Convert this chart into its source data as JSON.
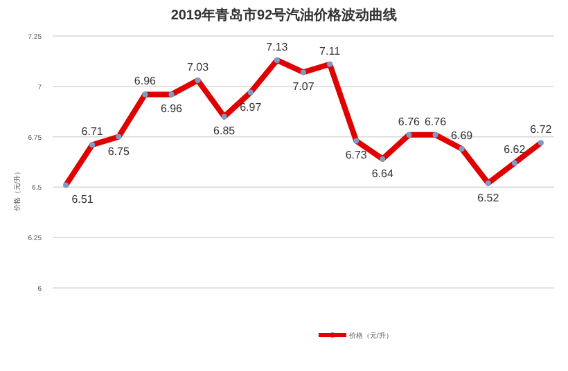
{
  "chart_data": {
    "type": "line",
    "title": "2019年青岛市92号汽油价格波动曲线",
    "ylabel": "价格（元/升）",
    "categories": [
      null,
      null,
      null,
      null,
      null,
      null,
      null,
      null,
      null,
      null,
      null,
      null,
      null,
      null,
      null,
      null,
      null,
      null,
      null
    ],
    "series": [
      {
        "name": "价格（元/升）",
        "color": "#e00000",
        "values": [
          6.51,
          6.71,
          6.75,
          6.96,
          6.96,
          7.03,
          6.85,
          6.97,
          7.13,
          7.07,
          7.11,
          6.73,
          6.64,
          6.76,
          6.76,
          6.69,
          6.52,
          6.62,
          6.72
        ]
      }
    ],
    "ylim": [
      6,
      7.25
    ],
    "yticks": [
      6,
      6.25,
      6.5,
      6.75,
      7,
      7.25
    ],
    "grid": "y",
    "legend": "bottom",
    "marker": "circle",
    "line_style": "solid",
    "data_labels": true
  }
}
